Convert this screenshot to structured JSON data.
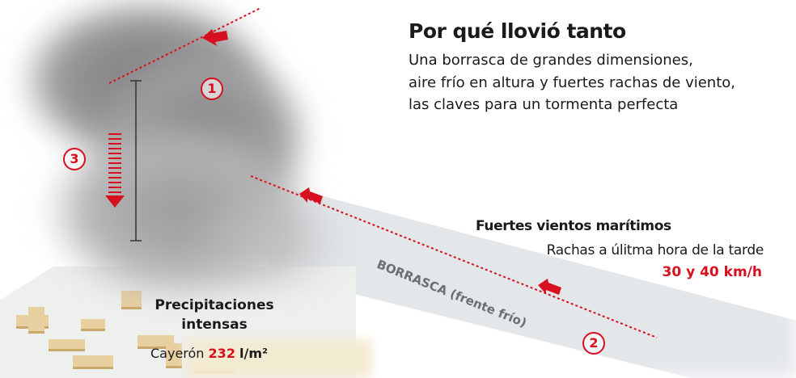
{
  "header": {
    "title": "Por qué llovió tanto",
    "subtitle_lines": [
      "Una borrasca de grandes dimensiones,",
      "aire frío en altura y fuertes rachas de viento,",
      "las claves para un tormenta perfecta"
    ]
  },
  "winds": {
    "title": "Fuertes vientos marítimos",
    "subtitle": "Rachas a úlitma hora de la tarde",
    "value": "30 y 40 km/h"
  },
  "front_label": "BORRASCA (frente frío)",
  "precip": {
    "title_line1": "Precipitaciones",
    "title_line2": "intensas",
    "prefix": "Cayerón",
    "value": "232",
    "unit": "l/m²"
  },
  "markers": [
    "1",
    "2",
    "3"
  ],
  "colors": {
    "accent": "#d6101e",
    "text": "#1a1a1a",
    "cloud": "#8a8a8a"
  }
}
